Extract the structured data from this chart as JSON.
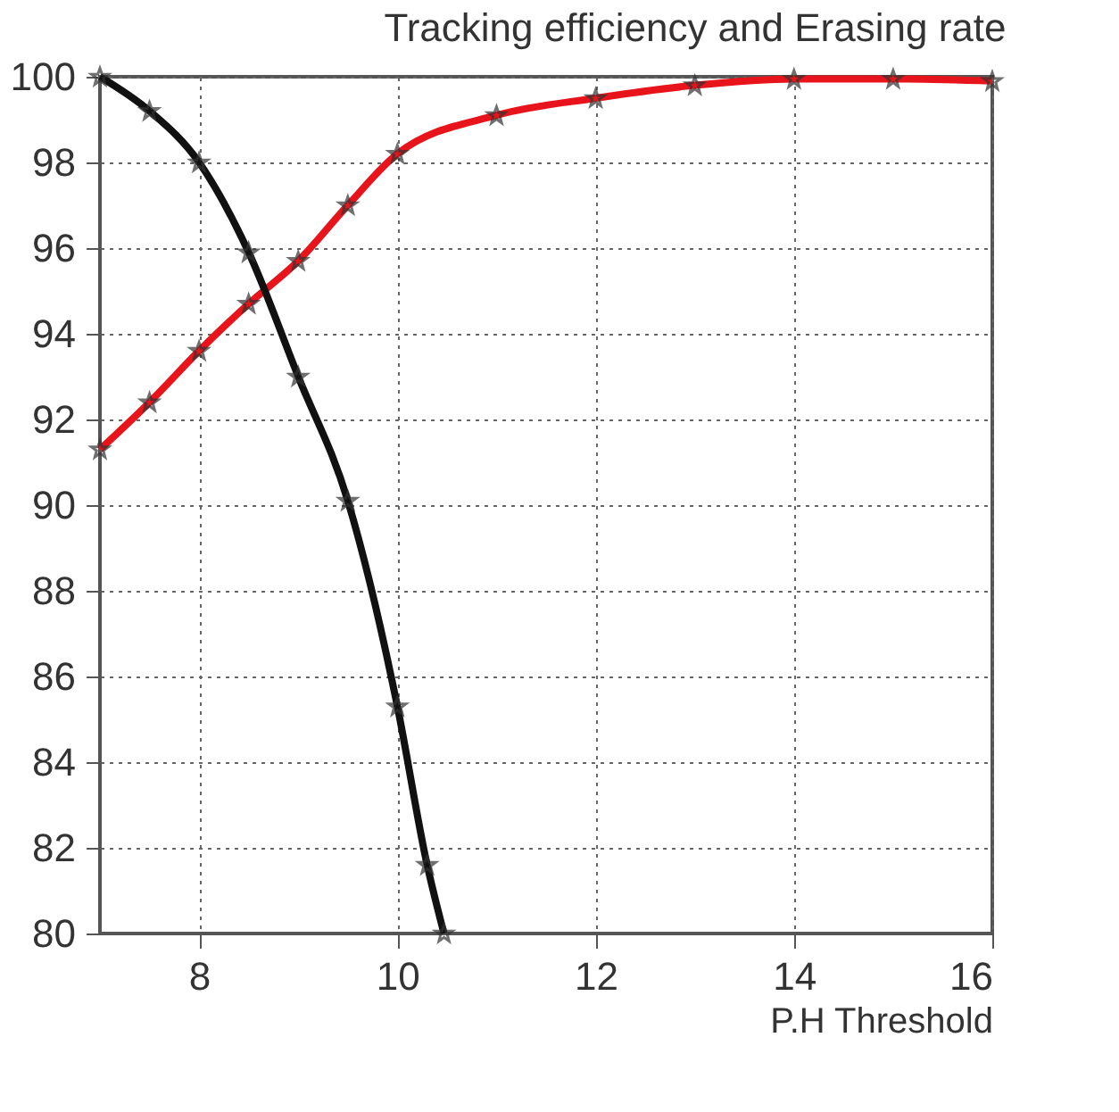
{
  "chart_data": {
    "type": "line",
    "title": "Tracking efficiency and Erasing rate",
    "xlabel": "P.H Threshold",
    "xlim": [
      7,
      16
    ],
    "xticks": [
      8,
      10,
      12,
      14,
      16
    ],
    "ylim": [
      80,
      100
    ],
    "yticks": [
      80,
      82,
      84,
      86,
      88,
      90,
      92,
      94,
      96,
      98,
      100
    ],
    "grid": true,
    "marker": "star",
    "line_style": "solid",
    "series": [
      {
        "color": "#e8141b",
        "x": [
          7,
          7.5,
          8,
          8.5,
          9,
          9.5,
          10,
          11,
          12,
          13,
          14,
          15,
          16
        ],
        "values": [
          91.3,
          92.4,
          93.6,
          94.7,
          95.7,
          97.0,
          98.2,
          99.1,
          99.5,
          99.8,
          99.95,
          99.95,
          99.9
        ]
      },
      {
        "color": "#111111",
        "x": [
          7,
          7.5,
          8,
          8.5,
          9,
          9.5,
          10,
          10.3,
          10.47
        ],
        "values": [
          100,
          99.2,
          98,
          95.9,
          93,
          90.1,
          85.3,
          81.6,
          80
        ]
      }
    ]
  }
}
